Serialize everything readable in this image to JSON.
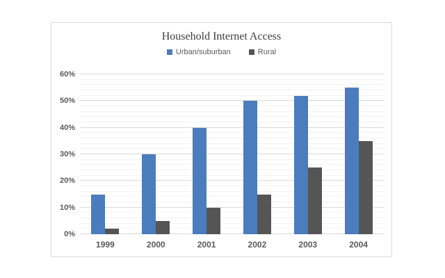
{
  "chart_data": {
    "type": "bar",
    "title": "Household Internet Access",
    "xlabel": "",
    "ylabel": "",
    "categories": [
      "1999",
      "2000",
      "2001",
      "2002",
      "2003",
      "2004"
    ],
    "series": [
      {
        "name": "Urban/suburban",
        "color": "#4b7cbd",
        "values": [
          15,
          30,
          40,
          50,
          52,
          55
        ]
      },
      {
        "name": "Rural",
        "color": "#555555",
        "values": [
          2,
          5,
          10,
          15,
          25,
          35
        ]
      }
    ],
    "ylim": [
      0,
      60
    ],
    "y_major_step": 10,
    "y_minor_step": 2,
    "y_tick_labels": [
      "0%",
      "10%",
      "20%",
      "30%",
      "40%",
      "50%",
      "60%"
    ],
    "grid": "major+minor",
    "legend_position": "top",
    "colors": {
      "chart_border": "#d9d9d9",
      "major_gridline": "#d9d9d9",
      "minor_gridline": "#f2f2f2",
      "title_text": "#3d3d3d",
      "axis_text": "#595959"
    }
  }
}
